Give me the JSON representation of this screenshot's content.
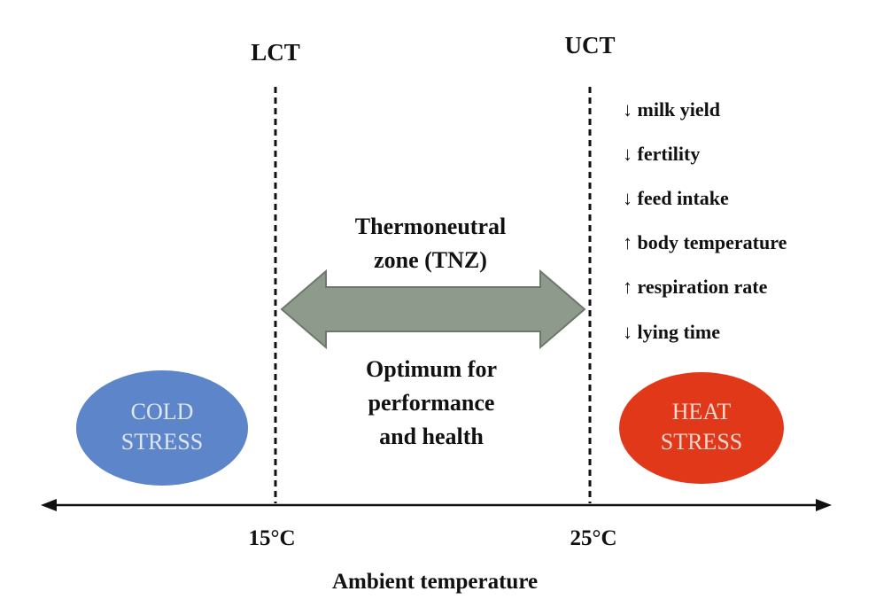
{
  "thresholds": {
    "lower": {
      "label": "LCT",
      "temperature": "15°C"
    },
    "upper": {
      "label": "UCT",
      "temperature": "25°C"
    }
  },
  "axis": {
    "label": "Ambient temperature"
  },
  "tnz": {
    "title_lines": [
      "Thermoneutral",
      "zone (TNZ)"
    ],
    "description_lines": [
      "Optimum for",
      "performance",
      "and health"
    ]
  },
  "cold_stress": {
    "lines": [
      "COLD",
      "STRESS"
    ],
    "fill": "#5d85c9",
    "text_color": "#dfe6f5"
  },
  "heat_stress": {
    "lines": [
      "HEAT",
      "STRESS"
    ],
    "fill": "#e1381a",
    "text_color": "#f5d6cc"
  },
  "heat_effects": [
    "↓ milk yield",
    "↓ fertility",
    "↓ feed intake",
    "↑ body temperature",
    "↑ respiration rate",
    "↓ lying time"
  ],
  "colors": {
    "arrow_fill": "#8e9a8c",
    "arrow_stroke": "#6d776b"
  }
}
